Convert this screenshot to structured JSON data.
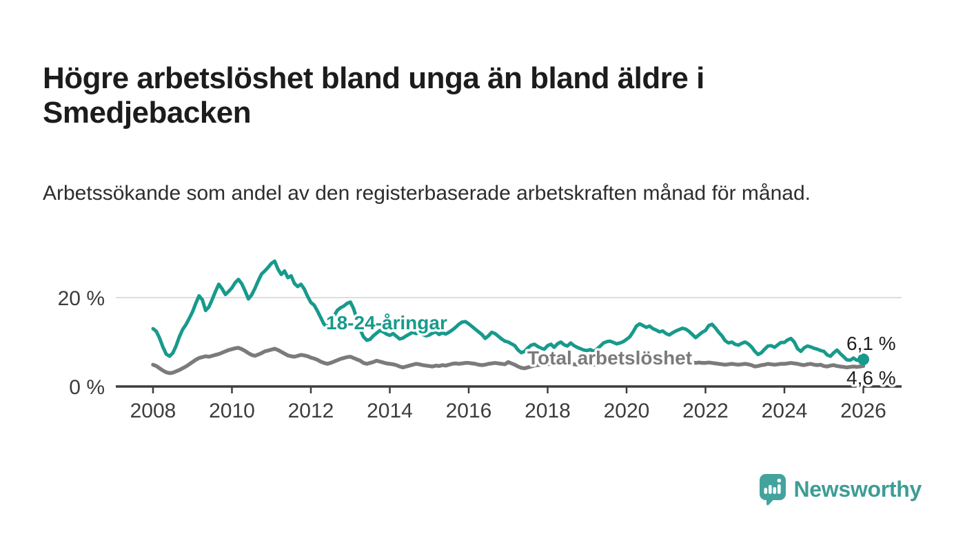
{
  "title": "Högre arbetslöshet bland unga än bland äldre i Smedjebacken",
  "subtitle": "Arbetssökande som andel av den registerbaserade arbetskraften månad för månad.",
  "branding": {
    "logo_text": "Newsworthy",
    "logo_icon": "bar-chart-speech-bubble-icon"
  },
  "colors": {
    "youth_line": "#179a8c",
    "total_line": "#7b7b7b",
    "axis": "#3d3d3d",
    "gridline": "#dcdcdc",
    "tick_label": "#3c3c3c",
    "end_label": "#1f1f1f",
    "logo_icon": "#43a39d",
    "logo_text": "#3d9d96",
    "background": "#ffffff"
  },
  "chart_data": {
    "type": "line",
    "frequency": "monthly",
    "start": "2008-01",
    "end": "2026-01",
    "grid": "horizontal-20pct-only",
    "legend_position": "inline-annotations",
    "ylim": [
      0,
      30
    ],
    "x_tick_labels": [
      "2008",
      "2010",
      "2012",
      "2014",
      "2016",
      "2018",
      "2020",
      "2022",
      "2024",
      "2026"
    ],
    "y_ticks": [
      {
        "value": 0,
        "label": "0 %"
      },
      {
        "value": 20,
        "label": "20 %"
      }
    ],
    "series": [
      {
        "name": "18-24-åringar",
        "annotation_text": "18-24-åringar",
        "end_label": "6,1 %",
        "latest_value": 6.1,
        "values": [
          13.0,
          12.4,
          10.9,
          8.9,
          7.3,
          6.8,
          7.5,
          9.1,
          11.2,
          12.8,
          13.9,
          15.3,
          16.8,
          18.7,
          20.4,
          19.5,
          17.1,
          17.9,
          19.6,
          21.4,
          23.0,
          22.0,
          20.7,
          21.4,
          22.2,
          23.4,
          24.1,
          23.1,
          21.5,
          19.7,
          20.6,
          22.1,
          23.8,
          25.3,
          26.0,
          26.8,
          27.7,
          28.2,
          26.4,
          25.2,
          26.0,
          24.5,
          24.9,
          23.2,
          22.5,
          23.0,
          21.9,
          20.3,
          18.9,
          18.3,
          17.0,
          15.5,
          14.0,
          13.4,
          14.2,
          15.8,
          17.1,
          17.7,
          18.1,
          18.7,
          19.0,
          17.5,
          15.2,
          12.8,
          11.2,
          10.4,
          10.6,
          11.4,
          12.0,
          12.6,
          12.3,
          11.8,
          11.5,
          11.9,
          11.3,
          10.7,
          10.9,
          11.4,
          11.8,
          12.2,
          11.9,
          12.1,
          11.7,
          11.4,
          11.6,
          12.0,
          12.3,
          11.7,
          12.1,
          11.8,
          12.2,
          12.7,
          13.3,
          14.0,
          14.5,
          14.6,
          14.1,
          13.5,
          12.9,
          12.3,
          11.7,
          10.8,
          11.4,
          12.2,
          11.9,
          11.3,
          10.7,
          10.2,
          10.0,
          9.6,
          9.2,
          8.2,
          7.6,
          7.9,
          8.7,
          9.3,
          9.5,
          9.0,
          8.6,
          8.4,
          9.2,
          9.5,
          8.8,
          9.6,
          10.0,
          9.4,
          9.1,
          9.8,
          9.2,
          8.8,
          8.5,
          8.2,
          8.1,
          8.3,
          7.9,
          8.4,
          9.1,
          9.8,
          10.1,
          10.2,
          9.9,
          9.6,
          9.8,
          10.1,
          10.6,
          11.2,
          12.3,
          13.6,
          14.1,
          13.7,
          13.3,
          13.6,
          13.0,
          12.7,
          12.3,
          12.5,
          11.9,
          11.6,
          12.1,
          12.5,
          12.8,
          13.1,
          12.9,
          12.4,
          11.7,
          11.0,
          11.6,
          12.2,
          12.6,
          13.7,
          14.0,
          13.2,
          12.2,
          11.4,
          10.3,
          9.8,
          10.0,
          9.5,
          9.3,
          9.7,
          10.0,
          9.6,
          8.9,
          7.9,
          7.2,
          7.6,
          8.4,
          9.1,
          9.2,
          8.8,
          9.4,
          9.9,
          9.9,
          10.5,
          10.8,
          10.0,
          8.5,
          7.9,
          8.7,
          9.1,
          8.9,
          8.6,
          8.4,
          8.1,
          7.9,
          7.1,
          6.8,
          7.6,
          8.2,
          7.4,
          6.7,
          6.0,
          5.9,
          6.4,
          5.9,
          6.0,
          6.1
        ]
      },
      {
        "name": "Total arbetslöshet",
        "annotation_text": "Total arbetslöshet",
        "end_label": "4,6 %",
        "latest_value": 4.6,
        "values": [
          4.9,
          4.6,
          4.1,
          3.6,
          3.2,
          3.0,
          3.1,
          3.4,
          3.7,
          4.1,
          4.5,
          5.0,
          5.5,
          6.0,
          6.4,
          6.6,
          6.8,
          6.7,
          6.9,
          7.1,
          7.3,
          7.6,
          7.9,
          8.2,
          8.4,
          8.6,
          8.7,
          8.4,
          8.0,
          7.5,
          7.1,
          6.9,
          7.2,
          7.5,
          7.9,
          8.1,
          8.3,
          8.5,
          8.2,
          7.8,
          7.4,
          7.0,
          6.8,
          6.7,
          6.9,
          7.1,
          7.0,
          6.8,
          6.5,
          6.3,
          6.0,
          5.6,
          5.3,
          5.1,
          5.3,
          5.6,
          5.9,
          6.2,
          6.4,
          6.6,
          6.7,
          6.4,
          6.1,
          5.8,
          5.3,
          5.1,
          5.3,
          5.5,
          5.8,
          5.6,
          5.4,
          5.2,
          5.1,
          5.0,
          4.8,
          4.5,
          4.3,
          4.5,
          4.7,
          4.9,
          5.1,
          5.0,
          4.8,
          4.7,
          4.6,
          4.5,
          4.7,
          4.6,
          4.8,
          4.7,
          4.9,
          5.1,
          5.2,
          5.1,
          5.2,
          5.3,
          5.3,
          5.2,
          5.1,
          4.9,
          4.8,
          4.9,
          5.1,
          5.2,
          5.3,
          5.2,
          5.1,
          5.0,
          5.5,
          5.2,
          4.9,
          4.5,
          4.2,
          4.1,
          4.3,
          4.5,
          4.7,
          4.8,
          4.9,
          5.0,
          5.0,
          5.1,
          5.0,
          5.1,
          5.2,
          5.1,
          5.0,
          5.1,
          5.0,
          4.9,
          4.9,
          5.0,
          5.0,
          4.9,
          4.9,
          5.0,
          5.1,
          5.2,
          5.3,
          5.3,
          5.2,
          5.3,
          5.4,
          5.5,
          5.6,
          5.8,
          6.0,
          6.3,
          6.4,
          6.3,
          6.2,
          6.1,
          6.0,
          5.9,
          5.8,
          5.9,
          5.9,
          5.8,
          5.9,
          5.8,
          5.7,
          5.6,
          5.6,
          5.5,
          5.4,
          5.3,
          5.4,
          5.3,
          5.3,
          5.4,
          5.3,
          5.2,
          5.1,
          5.0,
          4.9,
          5.0,
          5.1,
          5.0,
          4.9,
          5.0,
          5.1,
          5.0,
          4.8,
          4.5,
          4.6,
          4.8,
          4.9,
          5.1,
          5.0,
          4.9,
          5.0,
          5.1,
          5.1,
          5.2,
          5.3,
          5.2,
          5.1,
          4.9,
          4.8,
          5.0,
          5.1,
          4.9,
          4.8,
          4.9,
          4.6,
          4.5,
          4.7,
          4.8,
          4.6,
          4.5,
          4.4,
          4.3,
          4.4,
          4.5,
          4.4,
          4.5,
          4.6
        ]
      }
    ]
  }
}
